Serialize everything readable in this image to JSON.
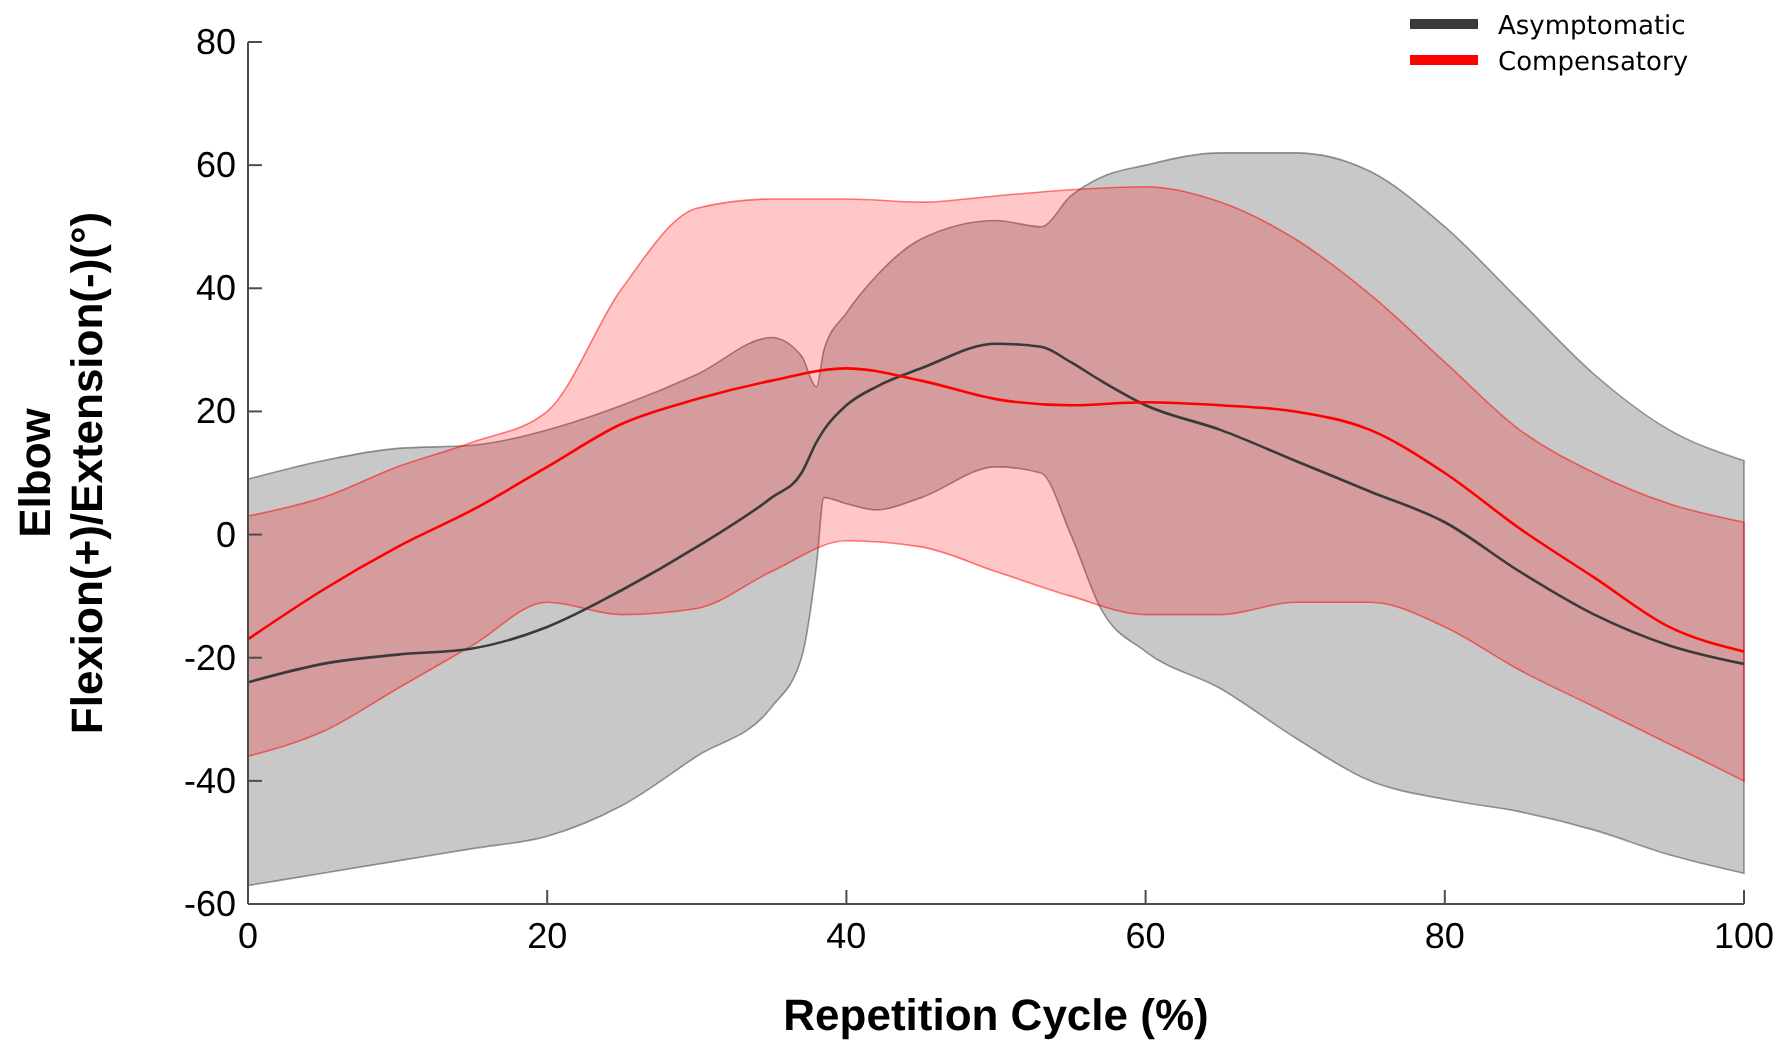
{
  "chart_data": {
    "type": "line",
    "xlabel": "Repetition Cycle (%)",
    "ylabel": "Elbow\nFlexion(+)/Extension(-)(°)",
    "xlim": [
      0,
      100
    ],
    "ylim": [
      -60,
      80
    ],
    "xticks": [
      0,
      20,
      40,
      60,
      80,
      100
    ],
    "yticks": [
      -60,
      -40,
      -20,
      0,
      20,
      40,
      60,
      80
    ],
    "legend": "top right",
    "series": [
      {
        "name": "Asymptomatic",
        "color": "#3a3a3a",
        "x": [
          0,
          5,
          10,
          15,
          20,
          25,
          30,
          35,
          37,
          38,
          38.5,
          40,
          42,
          45,
          50,
          53,
          55,
          57,
          60,
          65,
          70,
          75,
          80,
          85,
          90,
          95,
          100
        ],
        "values": [
          -24,
          -21,
          -19.5,
          -18.5,
          -15,
          -9,
          -2,
          6,
          10,
          15,
          17,
          21,
          24,
          27,
          31,
          30.5,
          28,
          25,
          21,
          17,
          12,
          7,
          2,
          -6,
          -13,
          -18,
          -21
        ],
        "lower": [
          -57,
          -55,
          -53,
          -51,
          -49,
          -44,
          -36,
          -28,
          -20,
          -5,
          6,
          5,
          4,
          6,
          11,
          10,
          0,
          -12,
          -19,
          -25,
          -33,
          -40,
          -43,
          -45,
          -48,
          -52,
          -55
        ],
        "upper": [
          9,
          12,
          14,
          14.5,
          17,
          21,
          26,
          32,
          29,
          24,
          30,
          36,
          42,
          48,
          51,
          50,
          55,
          58,
          60,
          62,
          62,
          59,
          50,
          38,
          26,
          17,
          12
        ]
      },
      {
        "name": "Compensatory",
        "color": "#ff0000",
        "x": [
          0,
          5,
          10,
          15,
          20,
          25,
          30,
          35,
          40,
          45,
          50,
          55,
          60,
          65,
          70,
          75,
          80,
          85,
          90,
          95,
          100
        ],
        "values": [
          -17,
          -9,
          -2,
          4,
          11,
          18,
          22,
          25,
          27,
          25,
          22,
          21,
          21.5,
          21,
          20,
          17,
          10,
          1,
          -7,
          -15,
          -19
        ],
        "lower": [
          -36,
          -32,
          -25,
          -18,
          -11,
          -13,
          -12,
          -6,
          -1,
          -2,
          -6,
          -10,
          -13,
          -13,
          -11,
          -11,
          -15,
          -22,
          -28,
          -34,
          -40
        ],
        "upper": [
          3,
          6,
          11,
          15,
          20,
          40,
          53,
          54.5,
          54.5,
          54,
          55,
          56,
          56.5,
          54,
          48,
          39,
          28,
          17,
          10,
          5,
          2
        ]
      }
    ]
  }
}
